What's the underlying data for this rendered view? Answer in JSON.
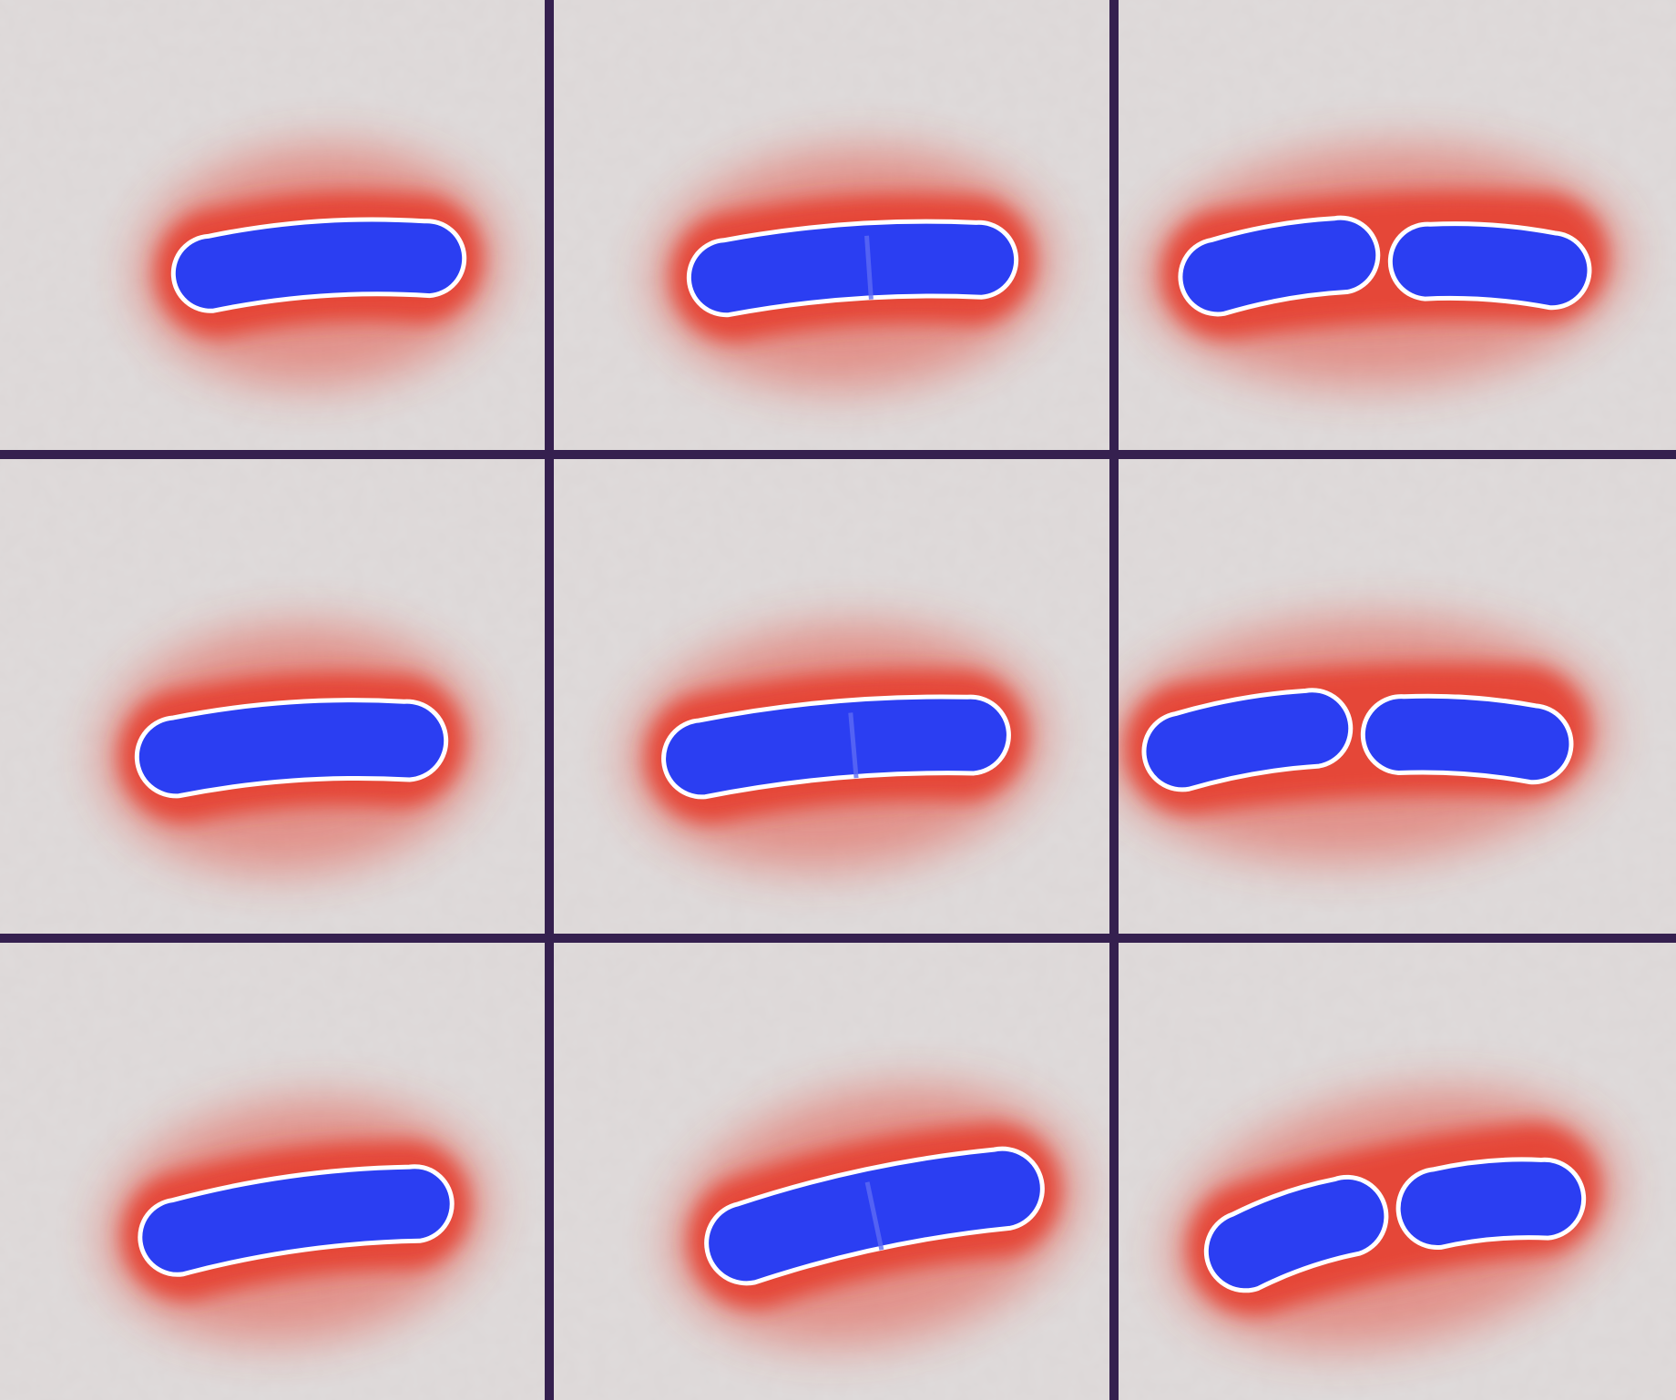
{
  "colors": {
    "background": "#dcd7d7",
    "halo": "#e63a2a",
    "cell": "#2b3ef2",
    "cell_outline": "#ffffff",
    "divider": "#35204f"
  },
  "grid": {
    "rows": 3,
    "columns": 3
  },
  "panels": [
    {
      "stage": "single-cell",
      "segments": 1
    },
    {
      "stage": "early-constriction",
      "segments": 1
    },
    {
      "stage": "divided",
      "segments": 2
    },
    {
      "stage": "single-cell",
      "segments": 1
    },
    {
      "stage": "early-constriction",
      "segments": 1
    },
    {
      "stage": "divided",
      "segments": 2
    },
    {
      "stage": "single-cell",
      "segments": 1
    },
    {
      "stage": "early-constriction",
      "segments": 1
    },
    {
      "stage": "divided",
      "segments": 2
    }
  ]
}
